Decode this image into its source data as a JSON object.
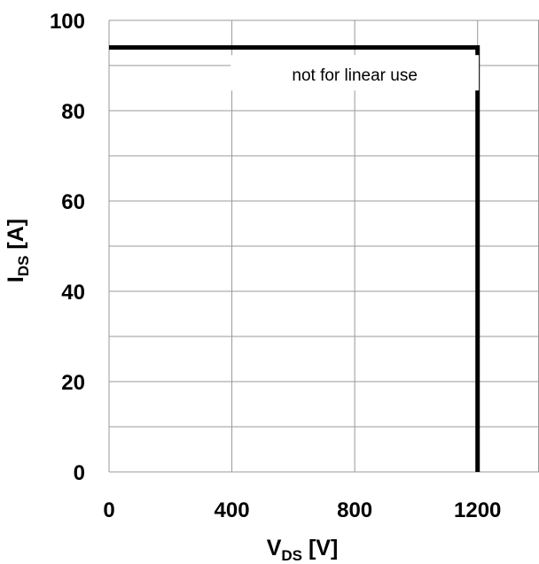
{
  "chart_data": {
    "type": "line",
    "title": "",
    "xlabel": {
      "main": "V",
      "sub": "DS",
      "unit": " [V]"
    },
    "ylabel": {
      "main": "I",
      "sub": "DS",
      "unit": " [A]"
    },
    "xlim": [
      0,
      1400
    ],
    "ylim": [
      0,
      100
    ],
    "x_ticks": [
      0,
      400,
      800,
      1200
    ],
    "x_tick_labels": [
      "0",
      "400",
      "800",
      "1200"
    ],
    "y_ticks": [
      0,
      20,
      40,
      60,
      80,
      100
    ],
    "y_tick_labels": [
      "0",
      "20",
      "40",
      "60",
      "80",
      "100"
    ],
    "x_gridlines": [
      0,
      400,
      800,
      1200,
      1400
    ],
    "y_gridlines": [
      0,
      10,
      20,
      30,
      40,
      50,
      60,
      70,
      80,
      90,
      100
    ],
    "grid": true,
    "series": [
      {
        "color": "#000000",
        "x": [
          0,
          1200,
          1200
        ],
        "y": [
          94,
          94,
          0
        ]
      }
    ],
    "annotations": [
      {
        "text": "not for linear use",
        "x": 800,
        "y": 88
      }
    ]
  }
}
